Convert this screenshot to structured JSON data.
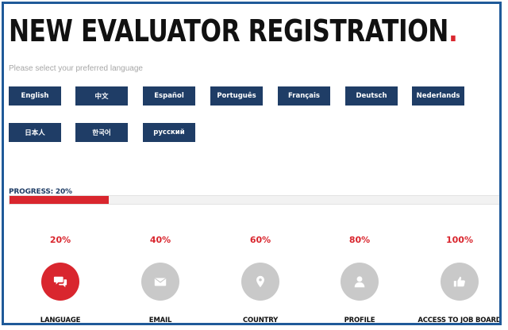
{
  "header": {
    "title": "NEW EVALUATOR REGISTRATION",
    "title_dot": "."
  },
  "language_prompt": "Please select your preferred language",
  "languages": [
    "English",
    "中文",
    "Español",
    "Português",
    "Français",
    "Deutsch",
    "Nederlands",
    "日本人",
    "한국어",
    "русский"
  ],
  "progress": {
    "label": "PROGRESS: 20%",
    "fraction": 0.2
  },
  "steps": [
    {
      "percent": "20%",
      "label": "LANGUAGE",
      "icon": "chat-bubbles-icon",
      "active": true
    },
    {
      "percent": "40%",
      "label": "EMAIL",
      "icon": "envelope-icon",
      "active": false
    },
    {
      "percent": "60%",
      "label": "COUNTRY",
      "icon": "map-pin-icon",
      "active": false
    },
    {
      "percent": "80%",
      "label": "PROFILE",
      "icon": "user-icon",
      "active": false
    },
    {
      "percent": "100%",
      "label": "ACCESS TO JOB BOARD",
      "icon": "thumbs-up-icon",
      "active": false
    }
  ],
  "colors": {
    "accent": "#d9262e",
    "button_bg": "#1f3d66",
    "frame_border": "#1f5a99",
    "inactive_step": "#c9c9c9"
  }
}
